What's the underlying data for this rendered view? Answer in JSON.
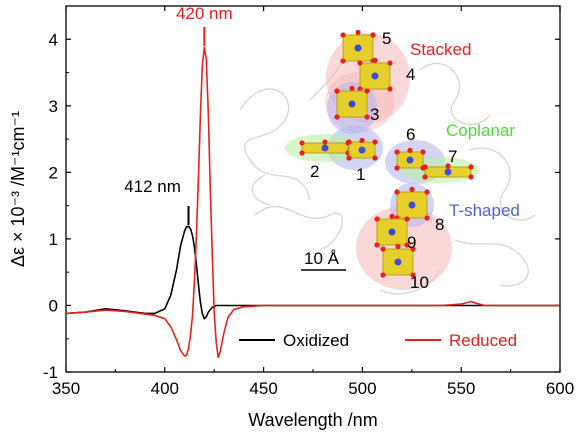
{
  "chart_data": {
    "type": "line",
    "xlabel": "Wavelength /nm",
    "ylabel": "Δε × 10⁻³ /M⁻¹cm⁻¹",
    "xlim": [
      350,
      600
    ],
    "ylim": [
      -1,
      4.5
    ],
    "xticks": [
      350,
      400,
      450,
      500,
      550,
      600
    ],
    "yticks": [
      -1,
      0,
      1,
      2,
      3,
      4
    ],
    "series": [
      {
        "name": "Oxidized",
        "color": "#000000",
        "x": [
          350,
          360,
          370,
          380,
          390,
          395,
          400,
          403,
          406,
          408,
          410,
          411,
          412,
          413,
          414,
          415,
          416,
          417,
          418,
          419,
          420,
          421,
          422,
          424,
          426,
          430,
          440,
          460,
          500,
          550,
          600
        ],
        "y": [
          -0.12,
          -0.1,
          -0.05,
          -0.08,
          -0.12,
          -0.12,
          -0.05,
          0.15,
          0.55,
          0.9,
          1.12,
          1.18,
          1.19,
          1.15,
          1.05,
          0.88,
          0.62,
          0.32,
          0.05,
          -0.12,
          -0.2,
          -0.17,
          -0.1,
          -0.03,
          0.0,
          0.0,
          0.0,
          0.0,
          0.0,
          0.0,
          0.0
        ]
      },
      {
        "name": "Reduced",
        "color": "#e8211f",
        "x": [
          350,
          360,
          370,
          380,
          390,
          395,
          400,
          403,
          406,
          408,
          410,
          411,
          412,
          413,
          414,
          415,
          416,
          417,
          418,
          419,
          420,
          421,
          422,
          423,
          424,
          425,
          426,
          427,
          428,
          430,
          432,
          435,
          440,
          450,
          470,
          500,
          540,
          550,
          555,
          558,
          562,
          570,
          600
        ],
        "y": [
          -0.12,
          -0.1,
          -0.07,
          -0.09,
          -0.13,
          -0.15,
          -0.2,
          -0.32,
          -0.52,
          -0.68,
          -0.76,
          -0.75,
          -0.65,
          -0.45,
          -0.15,
          0.35,
          1.05,
          1.9,
          2.85,
          3.6,
          3.88,
          3.7,
          2.9,
          1.8,
          0.8,
          -0.1,
          -0.55,
          -0.78,
          -0.7,
          -0.4,
          -0.18,
          -0.06,
          -0.02,
          0.0,
          0.0,
          0.0,
          0.0,
          0.02,
          0.06,
          0.03,
          0.0,
          0.0,
          0.0
        ]
      }
    ],
    "annotations": [
      {
        "text": "420 nm",
        "x": 420,
        "color": "#e8211f"
      },
      {
        "text": "412 nm",
        "x": 412,
        "color": "#000000"
      }
    ],
    "legend": "bottom",
    "grid": false
  },
  "inset": {
    "numbers": [
      "1",
      "2",
      "3",
      "4",
      "5",
      "6",
      "7",
      "8",
      "9",
      "10"
    ],
    "labels": {
      "stacked": "Stacked",
      "coplanar": "Coplanar",
      "tshaped": "T-shaped"
    },
    "scalebar": "10 Å",
    "colors": {
      "stacked": "#e8211f",
      "coplanar": "#55d83a",
      "tshaped": "#4a63d8",
      "heme": "#e6cf2a",
      "oxygen": "#e8211f",
      "iron": "#3d4fd8",
      "protein": "#c8c8c8"
    }
  }
}
